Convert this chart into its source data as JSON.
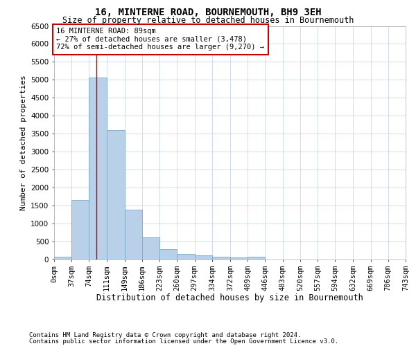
{
  "title": "16, MINTERNE ROAD, BOURNEMOUTH, BH9 3EH",
  "subtitle": "Size of property relative to detached houses in Bournemouth",
  "xlabel": "Distribution of detached houses by size in Bournemouth",
  "ylabel": "Number of detached properties",
  "footer_line1": "Contains HM Land Registry data © Crown copyright and database right 2024.",
  "footer_line2": "Contains public sector information licensed under the Open Government Licence v3.0.",
  "bar_color": "#b8d0e8",
  "bar_edge_color": "#7aaac8",
  "grid_color": "#c8d8ea",
  "annotation_text": "16 MINTERNE ROAD: 89sqm\n← 27% of detached houses are smaller (3,478)\n72% of semi-detached houses are larger (9,270) →",
  "vline_x": 89,
  "vline_color": "#cc0000",
  "bin_edges": [
    0,
    37,
    74,
    111,
    149,
    186,
    223,
    260,
    297,
    334,
    372,
    409,
    446,
    483,
    520,
    557,
    594,
    632,
    669,
    706,
    743
  ],
  "bar_heights": [
    75,
    1650,
    5060,
    3600,
    1390,
    620,
    295,
    155,
    125,
    80,
    55,
    75,
    0,
    0,
    0,
    0,
    0,
    0,
    0,
    0
  ],
  "ylim": [
    0,
    6500
  ],
  "yticks": [
    0,
    500,
    1000,
    1500,
    2000,
    2500,
    3000,
    3500,
    4000,
    4500,
    5000,
    5500,
    6000,
    6500
  ],
  "background_color": "#ffffff",
  "title_fontsize": 10,
  "subtitle_fontsize": 8.5,
  "ylabel_fontsize": 8,
  "xlabel_fontsize": 8.5,
  "tick_fontsize": 7.5,
  "footer_fontsize": 6.5,
  "annot_fontsize": 7.5
}
